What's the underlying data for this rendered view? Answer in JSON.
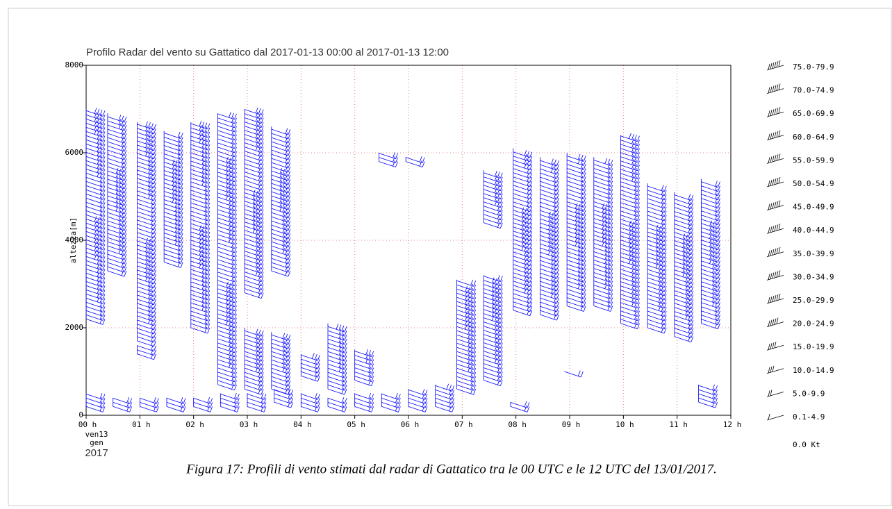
{
  "chart_data": {
    "type": "wind_barb",
    "title": "Profilo Radar del vento su Gattatico dal 2017-01-13 00:00 al 2017-01-13 12:00",
    "ylabel": "altezza[m]",
    "date_labels": [
      "ven13",
      "gen",
      "2017"
    ],
    "caption": "Figura 17: Profili di vento stimati dal radar di Gattatico tra le 00 UTC e le 12 UTC del 13/01/2017.",
    "color": "#0000ff",
    "grid": true,
    "xlim": [
      0,
      12
    ],
    "xticks": [
      {
        "value": 0,
        "label": "00 h"
      },
      {
        "value": 1,
        "label": "01 h"
      },
      {
        "value": 2,
        "label": "02 h"
      },
      {
        "value": 3,
        "label": "03 h"
      },
      {
        "value": 4,
        "label": "04 h"
      },
      {
        "value": 5,
        "label": "05 h"
      },
      {
        "value": 6,
        "label": "06 h"
      },
      {
        "value": 7,
        "label": "07 h"
      },
      {
        "value": 8,
        "label": "08 h"
      },
      {
        "value": 9,
        "label": "09 h"
      },
      {
        "value": 10,
        "label": "10 h"
      },
      {
        "value": 11,
        "label": "11 h"
      },
      {
        "value": 12,
        "label": "12 h"
      }
    ],
    "ylim": [
      0,
      8000
    ],
    "yticks": [
      0,
      2000,
      4000,
      6000,
      8000
    ],
    "legend": [
      "75.0-79.9",
      "70.0-74.9",
      "65.0-69.9",
      "60.0-64.9",
      "55.0-59.9",
      "50.0-54.9",
      "45.0-49.9",
      "40.0-44.9",
      "35.0-39.9",
      "30.0-34.9",
      "25.0-29.9",
      "20.0-24.9",
      "15.0-19.9",
      "10.0-14.9",
      "5.0-9.9",
      "0.1-4.9"
    ],
    "calm_label": "0.0 Kt",
    "profiles": [
      {
        "x": 0.0,
        "heights": [
          2200,
          7000
        ]
      },
      {
        "x": 0.4,
        "heights": [
          3300,
          6900
        ]
      },
      {
        "x": 0.95,
        "heights": [
          1700,
          6700
        ]
      },
      {
        "x": 0.95,
        "heights": [
          1400,
          1600
        ]
      },
      {
        "x": 1.45,
        "heights": [
          3500,
          6500
        ]
      },
      {
        "x": 1.95,
        "heights": [
          2000,
          6700
        ]
      },
      {
        "x": 2.45,
        "heights": [
          700,
          6900
        ]
      },
      {
        "x": 2.95,
        "heights": [
          2800,
          7000
        ]
      },
      {
        "x": 2.95,
        "heights": [
          600,
          2000
        ]
      },
      {
        "x": 3.45,
        "heights": [
          3300,
          6600
        ]
      },
      {
        "x": 3.45,
        "heights": [
          600,
          1900
        ]
      },
      {
        "x": 4.0,
        "heights": [
          900,
          1400
        ]
      },
      {
        "x": 4.5,
        "heights": [
          600,
          2100
        ]
      },
      {
        "x": 5.0,
        "heights": [
          800,
          1500
        ]
      },
      {
        "x": 5.45,
        "heights": [
          5800,
          6000
        ]
      },
      {
        "x": 5.95,
        "heights": [
          5800,
          5900
        ]
      },
      {
        "x": 6.9,
        "heights": [
          600,
          3100
        ]
      },
      {
        "x": 7.4,
        "heights": [
          800,
          3200
        ]
      },
      {
        "x": 7.4,
        "heights": [
          4400,
          5600
        ]
      },
      {
        "x": 7.95,
        "heights": [
          2400,
          6100
        ]
      },
      {
        "x": 8.45,
        "heights": [
          2300,
          5900
        ]
      },
      {
        "x": 8.95,
        "heights": [
          2500,
          6000
        ]
      },
      {
        "x": 9.45,
        "heights": [
          2500,
          5900
        ]
      },
      {
        "x": 9.95,
        "heights": [
          2100,
          6400
        ]
      },
      {
        "x": 10.45,
        "heights": [
          2000,
          5300
        ]
      },
      {
        "x": 10.95,
        "heights": [
          1800,
          5100
        ]
      },
      {
        "x": 11.45,
        "heights": [
          2100,
          5400
        ]
      },
      {
        "x": 0.0,
        "heights": [
          200,
          500
        ]
      },
      {
        "x": 0.5,
        "heights": [
          200,
          400
        ]
      },
      {
        "x": 1.0,
        "heights": [
          200,
          400
        ]
      },
      {
        "x": 1.5,
        "heights": [
          200,
          400
        ]
      },
      {
        "x": 2.0,
        "heights": [
          200,
          400
        ]
      },
      {
        "x": 2.5,
        "heights": [
          200,
          500
        ]
      },
      {
        "x": 3.0,
        "heights": [
          200,
          500
        ]
      },
      {
        "x": 3.5,
        "heights": [
          300,
          600
        ]
      },
      {
        "x": 4.0,
        "heights": [
          200,
          500
        ]
      },
      {
        "x": 4.5,
        "heights": [
          200,
          400
        ]
      },
      {
        "x": 5.0,
        "heights": [
          200,
          500
        ]
      },
      {
        "x": 5.5,
        "heights": [
          200,
          500
        ]
      },
      {
        "x": 6.0,
        "heights": [
          200,
          600
        ]
      },
      {
        "x": 6.5,
        "heights": [
          200,
          700
        ]
      },
      {
        "x": 7.9,
        "heights": [
          200,
          300
        ]
      },
      {
        "x": 8.9,
        "heights": [
          1000,
          1000
        ]
      },
      {
        "x": 11.4,
        "heights": [
          300,
          700
        ]
      }
    ]
  }
}
